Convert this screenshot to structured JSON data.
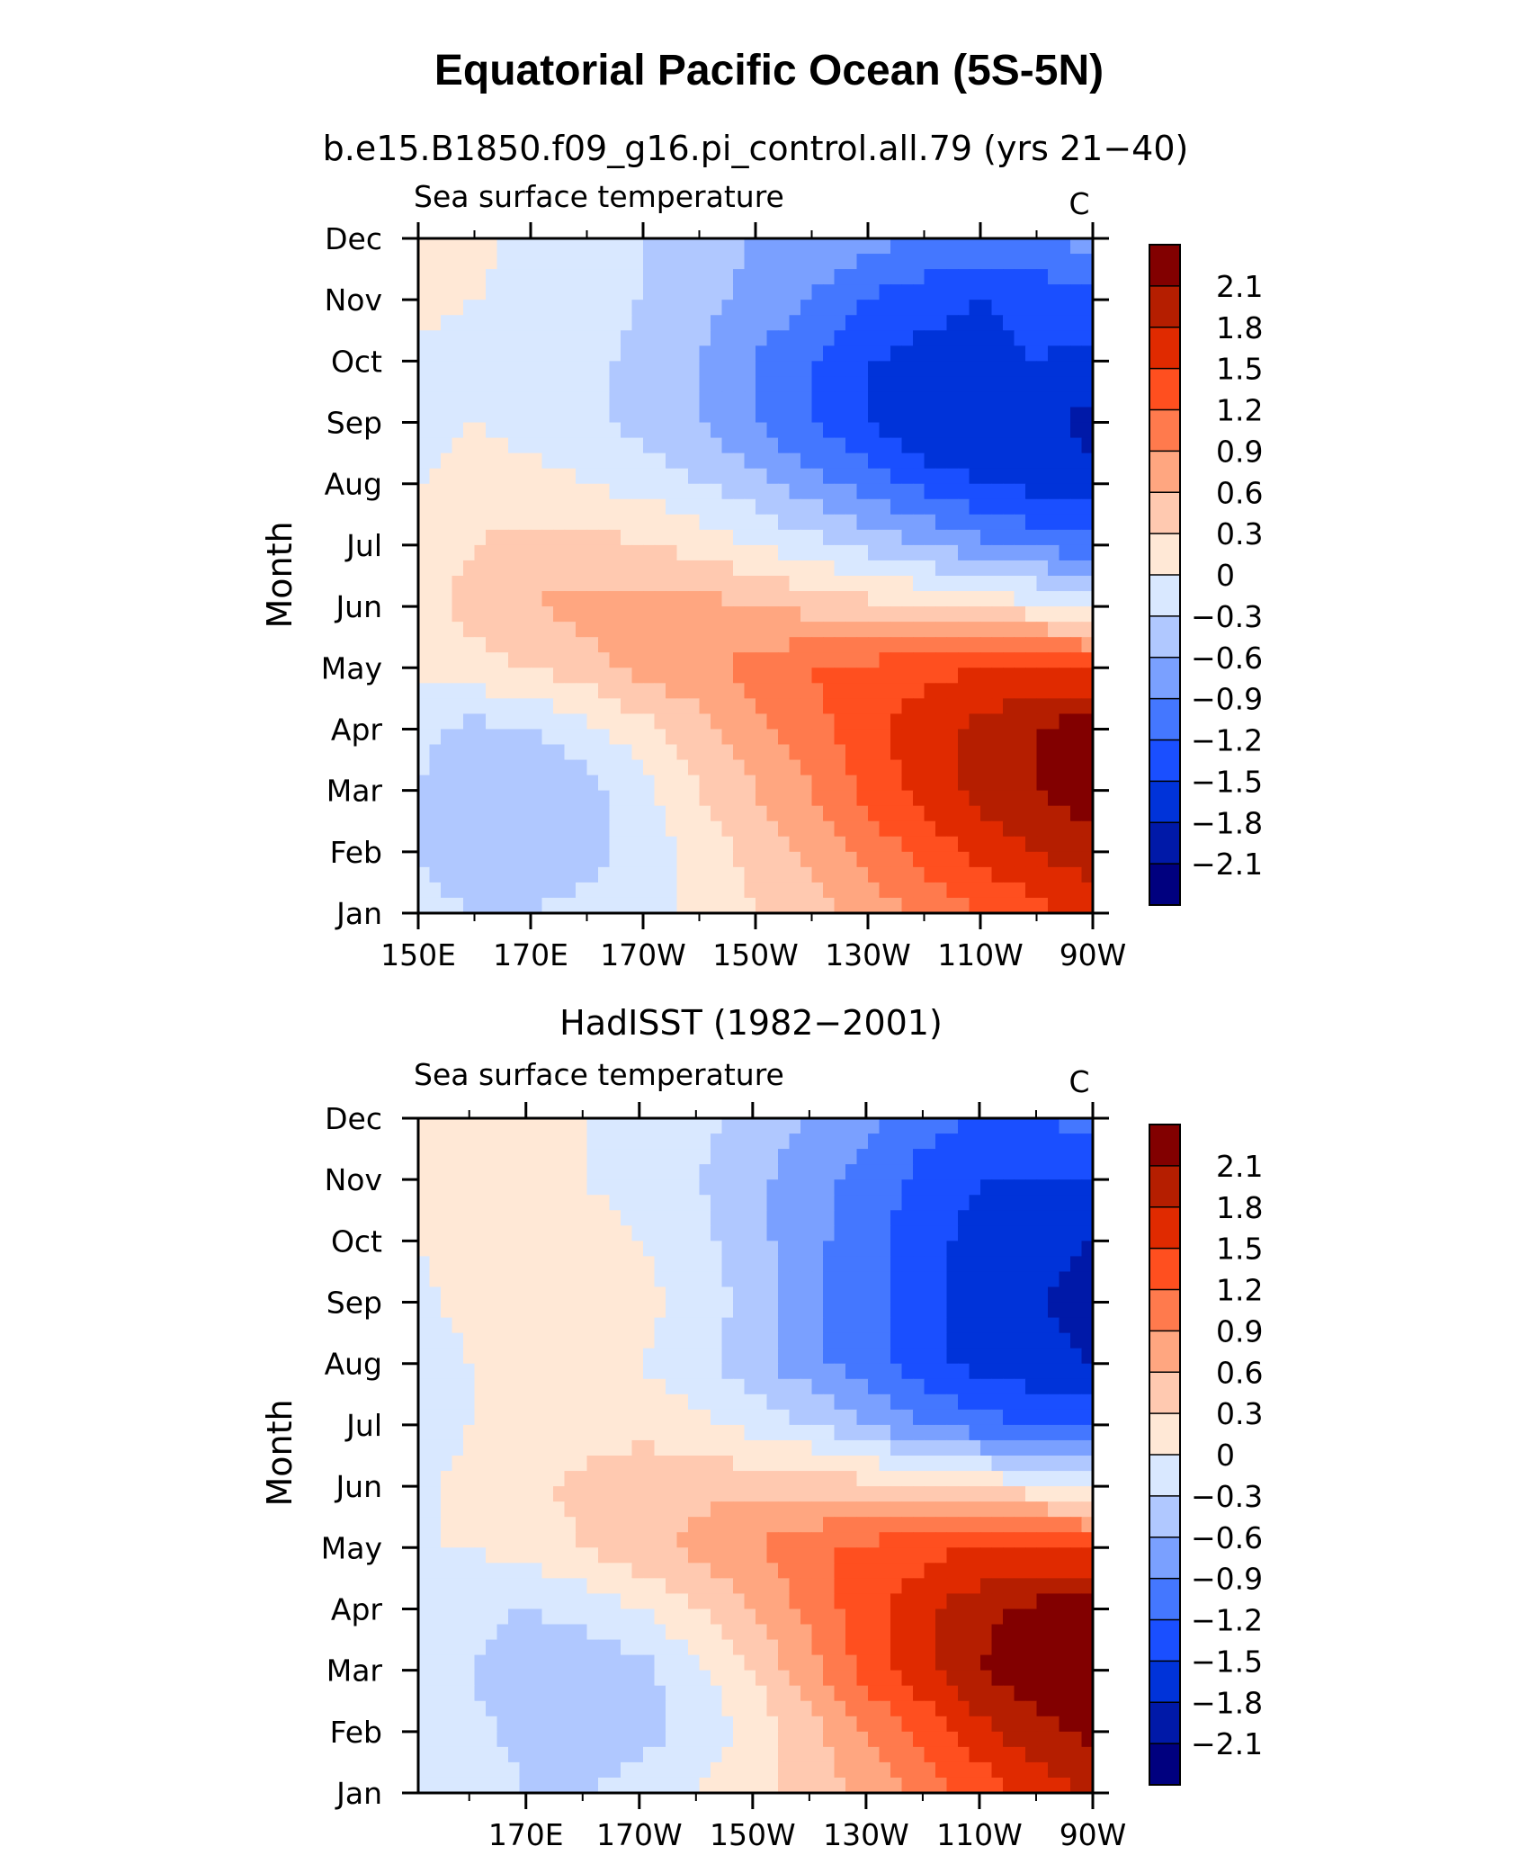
{
  "figure": {
    "title": "Equatorial Pacific Ocean (5S-5N)"
  },
  "colorbar": {
    "colors": [
      "#00007f",
      "#0019a8",
      "#0033d9",
      "#1a4fff",
      "#4477ff",
      "#7aa0ff",
      "#b0c8ff",
      "#d9e8ff",
      "#ffe8d6",
      "#ffc9b0",
      "#ffa680",
      "#ff7a4d",
      "#ff4f1f",
      "#e02a00",
      "#b51e00",
      "#820000"
    ],
    "labels": [
      "−2.1",
      "−1.8",
      "−1.5",
      "−1.2",
      "−0.9",
      "−0.6",
      "−0.3",
      "0",
      "0.3",
      "0.6",
      "0.9",
      "1.2",
      "1.5",
      "1.8",
      "2.1"
    ]
  },
  "chart_data": [
    {
      "type": "heatmap",
      "panel_title": "b.e15.B1850.f09_g16.pi_control.all.79 (yrs 21−40)",
      "variable": "Sea surface temperature",
      "units": "C",
      "ylabel": "Month",
      "xticks": [
        "150E",
        "170E",
        "170W",
        "150W",
        "130W",
        "110W",
        "90W"
      ],
      "x_range": [
        150,
        270
      ],
      "yticks": [
        "Jan",
        "Feb",
        "Mar",
        "Apr",
        "May",
        "Jun",
        "Jul",
        "Aug",
        "Sep",
        "Oct",
        "Nov",
        "Dec"
      ],
      "x": [
        150,
        160,
        170,
        180,
        190,
        200,
        210,
        220,
        230,
        240,
        250,
        260,
        270
      ],
      "z": [
        [
          -0.2,
          -0.3,
          -0.3,
          -0.2,
          -0.1,
          0.1,
          0.3,
          0.5,
          0.7,
          1.0,
          1.2,
          1.4,
          1.6
        ],
        [
          -0.3,
          -0.5,
          -0.5,
          -0.4,
          -0.2,
          0.1,
          0.4,
          0.7,
          1.0,
          1.3,
          1.6,
          1.8,
          2.0
        ],
        [
          -0.3,
          -0.6,
          -0.6,
          -0.4,
          -0.1,
          0.3,
          0.6,
          0.9,
          1.3,
          1.6,
          1.9,
          2.1,
          2.3
        ],
        [
          -0.2,
          -0.4,
          -0.3,
          -0.1,
          0.2,
          0.5,
          0.8,
          1.1,
          1.4,
          1.7,
          1.9,
          2.1,
          2.3
        ],
        [
          0.1,
          0.2,
          0.3,
          0.5,
          0.7,
          0.8,
          1.0,
          1.2,
          1.3,
          1.4,
          1.5,
          1.5,
          1.4
        ],
        [
          0.2,
          0.4,
          0.6,
          0.7,
          0.7,
          0.7,
          0.6,
          0.5,
          0.4,
          0.3,
          0.2,
          0.1,
          0.0
        ],
        [
          0.1,
          0.3,
          0.4,
          0.4,
          0.3,
          0.2,
          0.0,
          -0.2,
          -0.4,
          -0.6,
          -0.8,
          -1.0,
          -1.1
        ],
        [
          0.0,
          0.1,
          0.1,
          0.0,
          -0.1,
          -0.3,
          -0.5,
          -0.8,
          -1.0,
          -1.3,
          -1.5,
          -1.6,
          -1.7
        ],
        [
          -0.1,
          0.0,
          -0.1,
          -0.2,
          -0.4,
          -0.6,
          -0.9,
          -1.2,
          -1.5,
          -1.8,
          -1.8,
          -1.7,
          -1.9
        ],
        [
          -0.1,
          -0.1,
          -0.1,
          -0.2,
          -0.4,
          -0.6,
          -0.9,
          -1.2,
          -1.5,
          -1.6,
          -1.6,
          -1.5,
          -1.6
        ],
        [
          0.1,
          0.0,
          -0.1,
          -0.2,
          -0.3,
          -0.5,
          -0.7,
          -0.9,
          -1.2,
          -1.4,
          -1.5,
          -1.4,
          -1.3
        ],
        [
          0.1,
          0.1,
          -0.1,
          -0.2,
          -0.3,
          -0.5,
          -0.6,
          -0.7,
          -0.8,
          -0.9,
          -1.0,
          -0.9,
          -0.8
        ]
      ]
    },
    {
      "type": "heatmap",
      "panel_title": "HadISST (1982−2001)",
      "variable": "Sea surface temperature",
      "units": "C",
      "ylabel": "Month",
      "xticks": [
        "170E",
        "170W",
        "150W",
        "130W",
        "110W",
        "90W"
      ],
      "x_range": [
        151,
        270
      ],
      "yticks": [
        "Jan",
        "Feb",
        "Mar",
        "Apr",
        "May",
        "Jun",
        "Jul",
        "Aug",
        "Sep",
        "Oct",
        "Nov",
        "Dec"
      ],
      "x": [
        150,
        160,
        170,
        180,
        190,
        200,
        210,
        220,
        230,
        240,
        250,
        260,
        270
      ],
      "z": [
        [
          0.0,
          -0.1,
          -0.3,
          -0.3,
          -0.2,
          0.0,
          0.2,
          0.4,
          0.7,
          1.0,
          1.3,
          1.6,
          1.9
        ],
        [
          -0.1,
          -0.2,
          -0.4,
          -0.5,
          -0.4,
          -0.2,
          0.1,
          0.5,
          0.9,
          1.3,
          1.7,
          2.0,
          2.2
        ],
        [
          -0.1,
          -0.3,
          -0.5,
          -0.5,
          -0.4,
          -0.1,
          0.3,
          0.8,
          1.3,
          1.7,
          2.1,
          2.3,
          2.4
        ],
        [
          0.0,
          -0.2,
          -0.3,
          -0.2,
          0.0,
          0.3,
          0.6,
          1.0,
          1.4,
          1.7,
          2.0,
          2.2,
          2.2
        ],
        [
          0.0,
          0.0,
          0.1,
          0.3,
          0.5,
          0.7,
          0.9,
          1.1,
          1.3,
          1.4,
          1.5,
          1.5,
          1.4
        ],
        [
          -0.1,
          0.1,
          0.2,
          0.4,
          0.5,
          0.5,
          0.5,
          0.5,
          0.4,
          0.3,
          0.2,
          0.1,
          0.0
        ],
        [
          -0.2,
          0.0,
          0.1,
          0.1,
          0.2,
          0.1,
          -0.1,
          -0.3,
          -0.6,
          -0.9,
          -1.1,
          -1.2,
          -1.3
        ],
        [
          -0.2,
          0.0,
          0.1,
          0.1,
          0.0,
          -0.2,
          -0.5,
          -0.8,
          -1.1,
          -1.4,
          -1.6,
          -1.7,
          -1.8
        ],
        [
          -0.1,
          0.1,
          0.2,
          0.3,
          0.1,
          -0.1,
          -0.4,
          -0.8,
          -1.1,
          -1.4,
          -1.7,
          -1.8,
          -1.9
        ],
        [
          0.0,
          0.1,
          0.1,
          0.1,
          0.0,
          -0.2,
          -0.5,
          -0.8,
          -1.1,
          -1.4,
          -1.6,
          -1.7,
          -1.8
        ],
        [
          0.1,
          0.1,
          0.1,
          0.0,
          -0.1,
          -0.3,
          -0.5,
          -0.8,
          -1.0,
          -1.3,
          -1.5,
          -1.5,
          -1.5
        ],
        [
          0.1,
          0.1,
          0.1,
          0.0,
          -0.1,
          -0.2,
          -0.4,
          -0.6,
          -0.8,
          -1.1,
          -1.2,
          -1.2,
          -1.1
        ]
      ]
    }
  ]
}
